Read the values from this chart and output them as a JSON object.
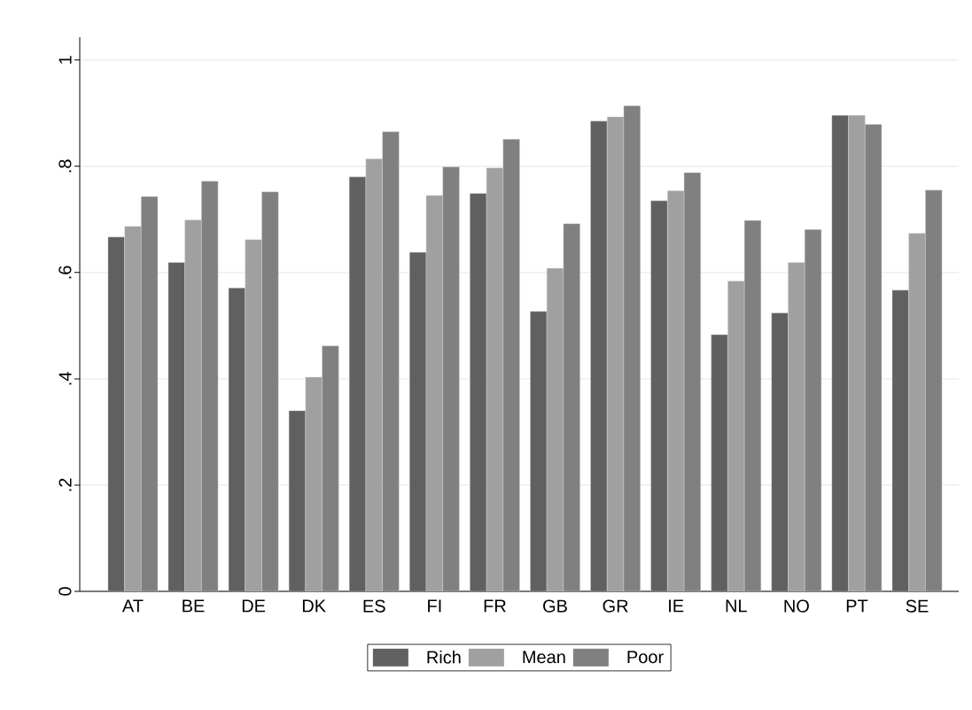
{
  "chart_data": {
    "type": "bar",
    "categories": [
      "AT",
      "BE",
      "DE",
      "DK",
      "ES",
      "FI",
      "FR",
      "GB",
      "GR",
      "IE",
      "NL",
      "NO",
      "PT",
      "SE"
    ],
    "series": [
      {
        "name": "Rich",
        "color": "#606060",
        "values": [
          0.667,
          0.619,
          0.571,
          0.34,
          0.78,
          0.638,
          0.749,
          0.527,
          0.885,
          0.735,
          0.483,
          0.524,
          0.896,
          0.567
        ]
      },
      {
        "name": "Mean",
        "color": "#a0a0a0",
        "values": [
          0.687,
          0.699,
          0.662,
          0.403,
          0.814,
          0.745,
          0.797,
          0.608,
          0.893,
          0.754,
          0.584,
          0.619,
          0.896,
          0.674
        ]
      },
      {
        "name": "Poor",
        "color": "#808080",
        "values": [
          0.743,
          0.772,
          0.752,
          0.462,
          0.865,
          0.799,
          0.851,
          0.692,
          0.914,
          0.788,
          0.698,
          0.681,
          0.879,
          0.755
        ]
      }
    ],
    "ylim": [
      0,
      1.043
    ],
    "yticks": [
      0,
      {
        "value": 0.2,
        "label": ".2"
      },
      {
        "value": 0.4,
        "label": ".4"
      },
      {
        "value": 0.6,
        "label": ".6"
      },
      {
        "value": 0.8,
        "label": ".8"
      },
      1
    ],
    "grid": "y",
    "legend": "bottom"
  }
}
